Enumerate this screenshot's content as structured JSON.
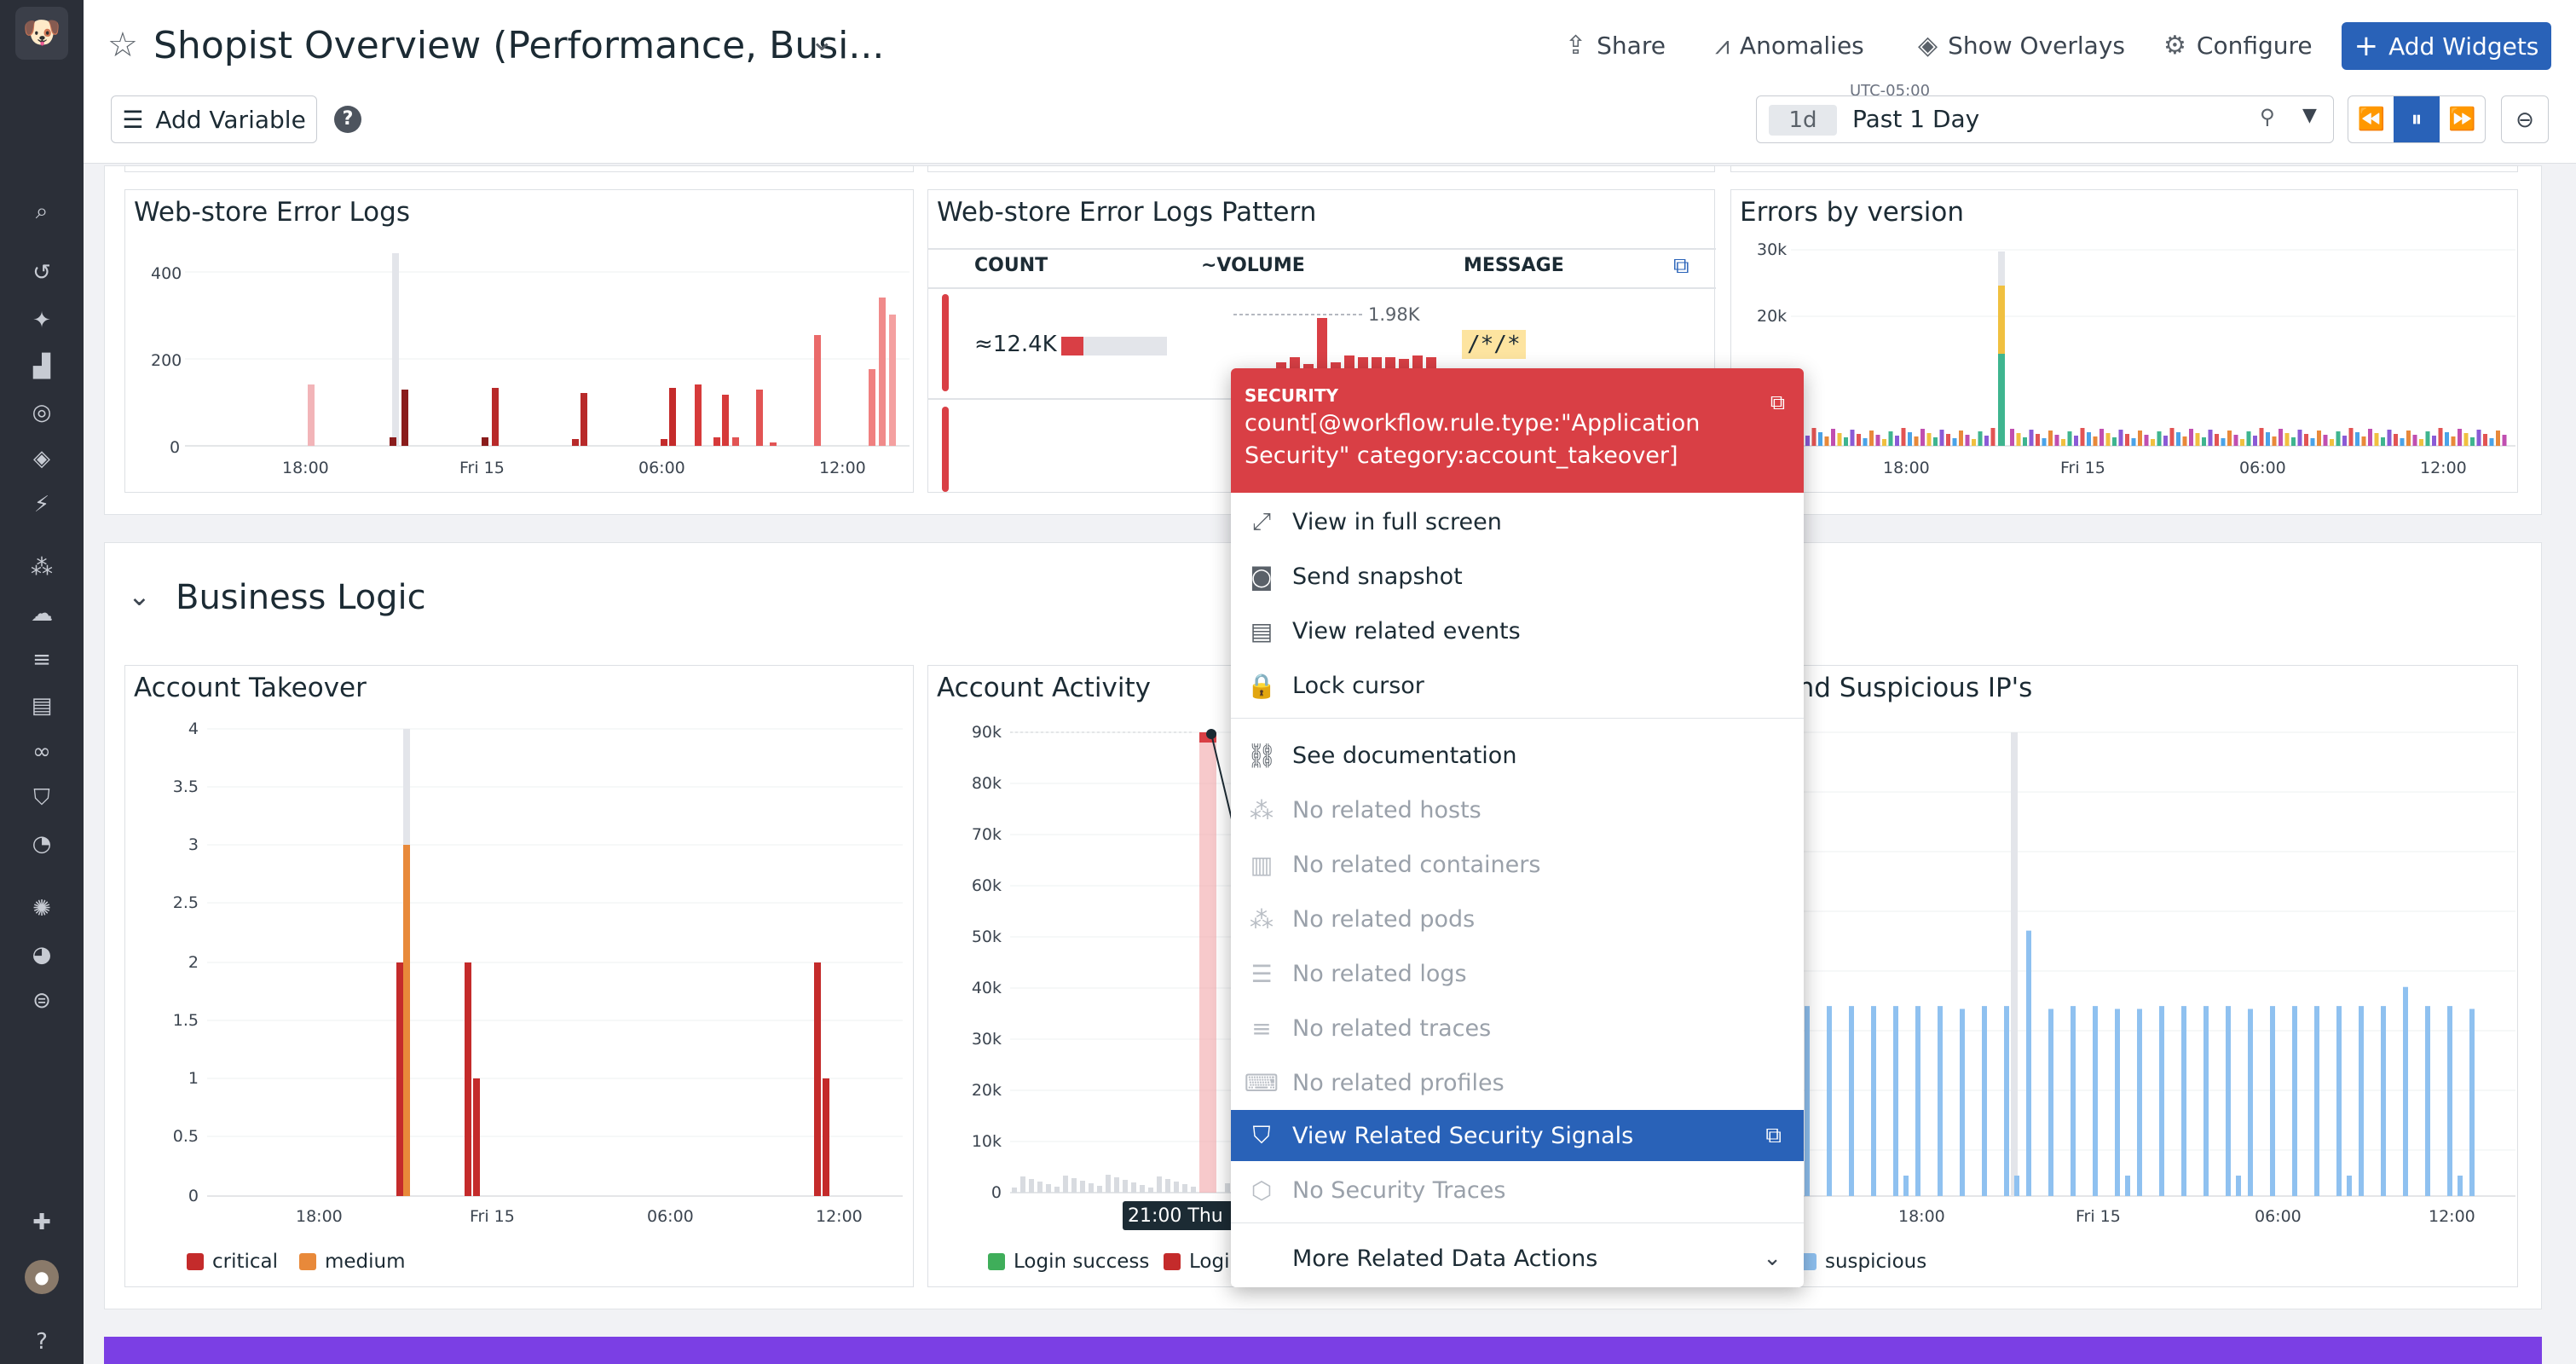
{
  "header": {
    "title": "Shopist Overview (Performance, Busi...",
    "share": "Share",
    "anomalies": "Anomalies",
    "overlays": "Show Overlays",
    "configure": "Configure",
    "add_widgets": "Add Widgets",
    "add_variable": "Add Variable"
  },
  "time": {
    "tz": "UTC-05:00",
    "pill": "1d",
    "value": "Past 1 Day"
  },
  "widgets": {
    "err_logs": {
      "title": "Web-store Error Logs",
      "yticks": [
        "400",
        "200",
        "0"
      ],
      "xticks": [
        "18:00",
        "Fri 15",
        "06:00",
        "12:00"
      ]
    },
    "pattern": {
      "title": "Web-store Error Logs Pattern",
      "cols": [
        "COUNT",
        "~VOLUME",
        "MESSAGE"
      ],
      "count": "≈12.4K",
      "peak": "1.98K",
      "message": "/*/*"
    },
    "errs_version": {
      "title": "Errors by version",
      "yticks": [
        "30k",
        "20k"
      ],
      "xticks": [
        "18:00",
        "Fri 15",
        "06:00",
        "12:00"
      ]
    },
    "account_takeover": {
      "title": "Account Takeover",
      "yticks": [
        "4",
        "3.5",
        "3",
        "2.5",
        "2",
        "1.5",
        "1",
        "0.5",
        "0"
      ],
      "xticks": [
        "18:00",
        "Fri 15",
        "06:00",
        "12:00"
      ],
      "legend": [
        "critical",
        "medium"
      ]
    },
    "account_activity": {
      "title": "Account Activity",
      "yticks": [
        "90k",
        "80k",
        "70k",
        "60k",
        "50k",
        "40k",
        "30k",
        "20k",
        "10k",
        "0"
      ],
      "tooltip": "21:00 Thu",
      "legend": [
        "Login success",
        "Logi"
      ]
    },
    "ips": {
      "title": "ed and Suspicious IP's",
      "xticks": [
        "18:00",
        "Fri 15",
        "06:00",
        "12:00"
      ],
      "legend": [
        "suspicious"
      ]
    }
  },
  "section": {
    "title": "Business Logic"
  },
  "context_menu": {
    "kind": "SECURITY",
    "query": "count[@workflow.rule.type:\"Application Security\" category:account_takeover]",
    "items": [
      {
        "label": "View in full screen",
        "icon": "expand-icon"
      },
      {
        "label": "Send snapshot",
        "icon": "camera-icon"
      },
      {
        "label": "View related events",
        "icon": "list-icon"
      },
      {
        "label": "Lock cursor",
        "icon": "lock-icon"
      },
      {
        "label": "See documentation",
        "icon": "link-icon"
      },
      {
        "label": "No related hosts",
        "icon": "hosts-icon"
      },
      {
        "label": "No related containers",
        "icon": "containers-icon"
      },
      {
        "label": "No related pods",
        "icon": "pods-icon"
      },
      {
        "label": "No related logs",
        "icon": "logs-icon"
      },
      {
        "label": "No related traces",
        "icon": "traces-icon"
      },
      {
        "label": "No related profiles",
        "icon": "profiles-icon"
      },
      {
        "label": "View Related Security Signals",
        "icon": "shield-icon"
      },
      {
        "label": "No Security Traces",
        "icon": "security-traces-icon"
      },
      {
        "label": "More Related Data Actions",
        "icon": "chevron-down-icon"
      }
    ]
  },
  "colors": {
    "accent": "#2962b8",
    "menu_header": "#d93f45",
    "critical": "#c42b2b",
    "medium": "#e8893a",
    "success": "#3fae5a",
    "suspicious": "#8fc1f0",
    "banner": "#7b3fe4"
  }
}
